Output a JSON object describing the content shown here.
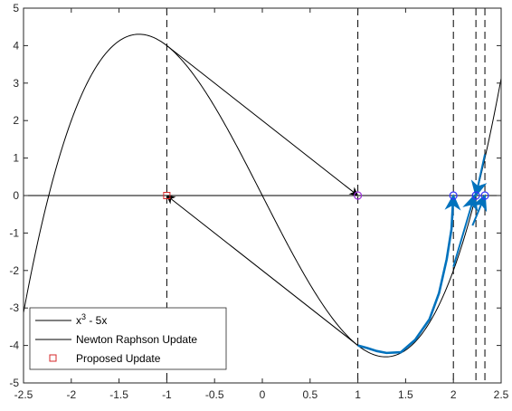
{
  "chart_data": {
    "type": "line",
    "xlim": [
      -2.5,
      2.5
    ],
    "ylim": [
      -5,
      5
    ],
    "x_ticks": [
      "-2.5",
      "-2",
      "-1.5",
      "-1",
      "-0.5",
      "0",
      "0.5",
      "1",
      "1.5",
      "2",
      "2.5"
    ],
    "y_ticks": [
      "-5",
      "-4",
      "-3",
      "-2",
      "-1",
      "0",
      "1",
      "2",
      "3",
      "4",
      "5"
    ],
    "grid": false,
    "legend_position": "bottom-left",
    "legend": {
      "curve_label_base": "x",
      "curve_label_sup": "3",
      "curve_label_rest": " - 5x",
      "newton_label": "Newton Raphson Update",
      "proposed_label": "Proposed Update"
    },
    "series": [
      {
        "name": "x^3 - 5x",
        "function": "x^3 - 5x",
        "color": "#000000"
      },
      {
        "name": "Newton Raphson Update",
        "color": "#000000"
      },
      {
        "name": "Proposed Update",
        "color": "#d62728"
      }
    ],
    "vertical_dashed_lines_x": [
      -1,
      1,
      2,
      2.236,
      2.33
    ],
    "newton_arrows": [
      {
        "from": [
          -1,
          4
        ],
        "to": [
          1,
          0
        ]
      },
      {
        "from": [
          1,
          -4
        ],
        "to": [
          -1,
          0
        ]
      }
    ],
    "blue_path": {
      "color": "#0072bd",
      "points": [
        [
          1,
          -4
        ],
        [
          1.1,
          -4.07
        ],
        [
          1.2,
          -4.15
        ],
        [
          1.3,
          -4.2
        ],
        [
          1.45,
          -4.18
        ],
        [
          1.6,
          -3.85
        ],
        [
          1.75,
          -3.3
        ],
        [
          1.85,
          -2.6
        ],
        [
          1.93,
          -1.7
        ],
        [
          1.98,
          -0.9
        ],
        [
          2.0,
          0
        ]
      ]
    },
    "short_arrows": [
      {
        "from": [
          2.0,
          -1.9
        ],
        "to": [
          2.22,
          0
        ],
        "color": "#0072bd"
      },
      {
        "from": [
          2.33,
          1.1
        ],
        "to": [
          2.236,
          0
        ],
        "color": "#0072bd"
      },
      {
        "from": [
          2.2,
          -0.8
        ],
        "to": [
          2.33,
          0
        ],
        "color": "#0072bd"
      }
    ],
    "blue_markers": [
      [
        2,
        0
      ],
      [
        2.236,
        0
      ],
      [
        2.33,
        0
      ]
    ],
    "purple_markers": [
      [
        1,
        0
      ]
    ],
    "red_markers": [
      [
        -1,
        0
      ]
    ]
  }
}
